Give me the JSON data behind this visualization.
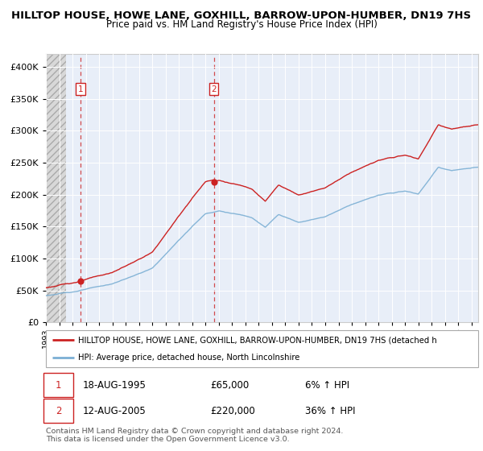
{
  "title1": "HILLTOP HOUSE, HOWE LANE, GOXHILL, BARROW-UPON-HUMBER, DN19 7HS",
  "title2": "Price paid vs. HM Land Registry's House Price Index (HPI)",
  "purchase1_date": 1995.62,
  "purchase1_price": 65000,
  "purchase2_date": 2005.62,
  "purchase2_price": 220000,
  "hpi_color": "#7bafd4",
  "price_color": "#cc2222",
  "bg_color": "#e8eef8",
  "hatch_bg": "#e0e0e0",
  "plot_bg": "#ffffff",
  "ylim_max": 420000,
  "xmin": 1993,
  "xmax": 2025.5,
  "legend_line1": "HILLTOP HOUSE, HOWE LANE, GOXHILL, BARROW-UPON-HUMBER, DN19 7HS (detached h",
  "legend_line2": "HPI: Average price, detached house, North Lincolnshire",
  "footnote": "Contains HM Land Registry data © Crown copyright and database right 2024.\nThis data is licensed under the Open Government Licence v3.0."
}
